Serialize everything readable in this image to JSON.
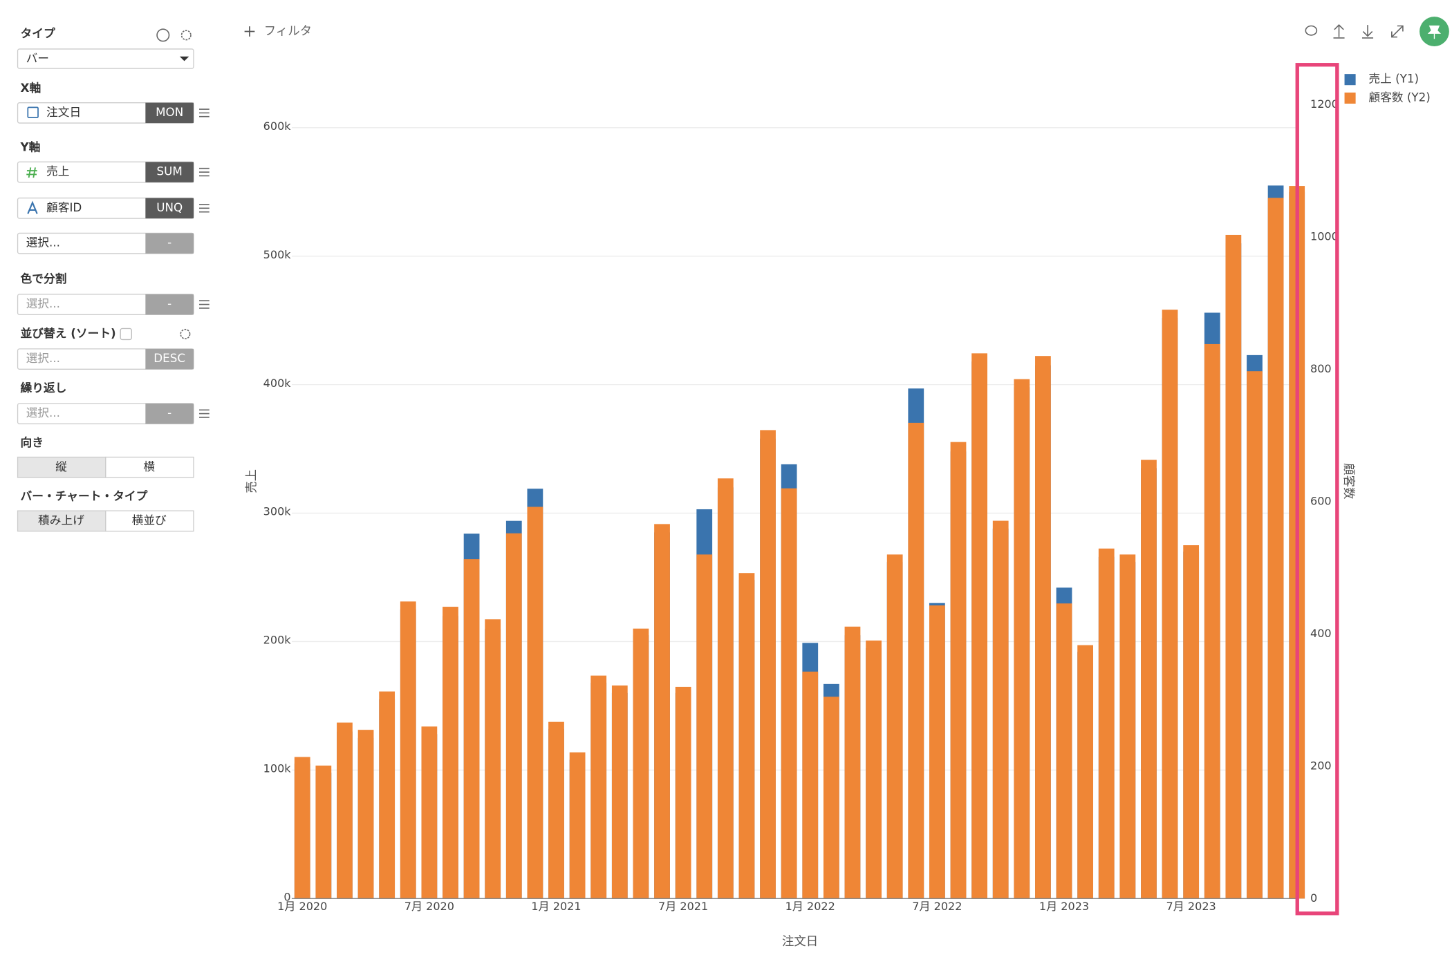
{
  "sidebar": {
    "type_label": "タイプ",
    "type_value": "バー",
    "x_axis_label": "X軸",
    "x_field": "注文日",
    "x_agg": "MON",
    "y_axis_label": "Y軸",
    "y_fields": [
      {
        "name": "売上",
        "agg": "SUM"
      },
      {
        "name": "顧客ID",
        "agg": "UNQ"
      },
      {
        "name": "選択...",
        "agg": "-"
      }
    ],
    "color_label": "色で分割",
    "color_field": "選択...",
    "color_agg": "-",
    "sort_label": "並び替え (ソート)",
    "sort_field": "選択...",
    "sort_agg": "DESC",
    "repeat_label": "繰り返し",
    "repeat_field": "選択...",
    "repeat_agg": "-",
    "orientation_label": "向き",
    "orientation_options": [
      "縦",
      "横"
    ],
    "bar_type_label": "バー・チャート・タイプ",
    "bar_type_options": [
      "積み上げ",
      "横並び"
    ]
  },
  "toolbar": {
    "filter": "フィルタ"
  },
  "chart_data": {
    "type": "bar",
    "x_label": "注文日",
    "y_label": "売上",
    "y2_label": "顧客数",
    "grid": true,
    "categories": [
      "1月 2020",
      null,
      null,
      null,
      null,
      null,
      "7月 2020",
      null,
      null,
      null,
      null,
      null,
      "1月 2021",
      null,
      null,
      null,
      null,
      null,
      "7月 2021",
      null,
      null,
      null,
      null,
      null,
      "1月 2022",
      null,
      null,
      null,
      null,
      null,
      "7月 2022",
      null,
      null,
      null,
      null,
      null,
      "1月 2023",
      null,
      null,
      null,
      null,
      null,
      "7月 2023",
      null,
      null,
      null,
      null,
      null
    ],
    "series": [
      {
        "name": "売上 (Y1)",
        "color": "#3a74ae",
        "values": [
          105000,
          98000,
          130000,
          125000,
          155000,
          225000,
          128000,
          220000,
          284000,
          210000,
          294000,
          319000,
          132000,
          108000,
          168000,
          160000,
          205000,
          285000,
          160000,
          303000,
          320000,
          248000,
          358000,
          338000,
          199000,
          167000,
          205000,
          195000,
          262000,
          397000,
          230000,
          348000,
          418000,
          288000,
          398000,
          415000,
          242000,
          192000,
          266000,
          262000,
          335000,
          452000,
          270000,
          456000,
          510000,
          423000,
          555000,
          550000
        ]
      },
      {
        "name": "顧客数 (Y2)",
        "color": "#ef8636",
        "axis": "y2",
        "values": [
          214,
          201,
          266,
          255,
          313,
          449,
          260,
          441,
          513,
          422,
          552,
          592,
          267,
          221,
          337,
          322,
          408,
          566,
          320,
          520,
          635,
          492,
          708,
          620,
          343,
          305,
          411,
          390,
          520,
          719,
          443,
          690,
          824,
          571,
          785,
          820,
          446,
          383,
          529,
          520,
          663,
          890,
          534,
          838,
          1003,
          797,
          1059,
          1077
        ]
      }
    ],
    "ylim": [
      0,
      618000
    ],
    "yticks": [
      0,
      {
        "value": 100000,
        "label": "100k"
      },
      {
        "value": 200000,
        "label": "200k"
      },
      {
        "value": 300000,
        "label": "300k"
      },
      {
        "value": 400000,
        "label": "400k"
      },
      {
        "value": 500000,
        "label": "500k"
      },
      {
        "value": 600000,
        "label": "600k"
      }
    ],
    "y2lim": [
      0,
      1200
    ],
    "y2ticks": [
      0,
      200,
      400,
      600,
      800,
      1000,
      1200
    ],
    "legend": "top-right"
  }
}
